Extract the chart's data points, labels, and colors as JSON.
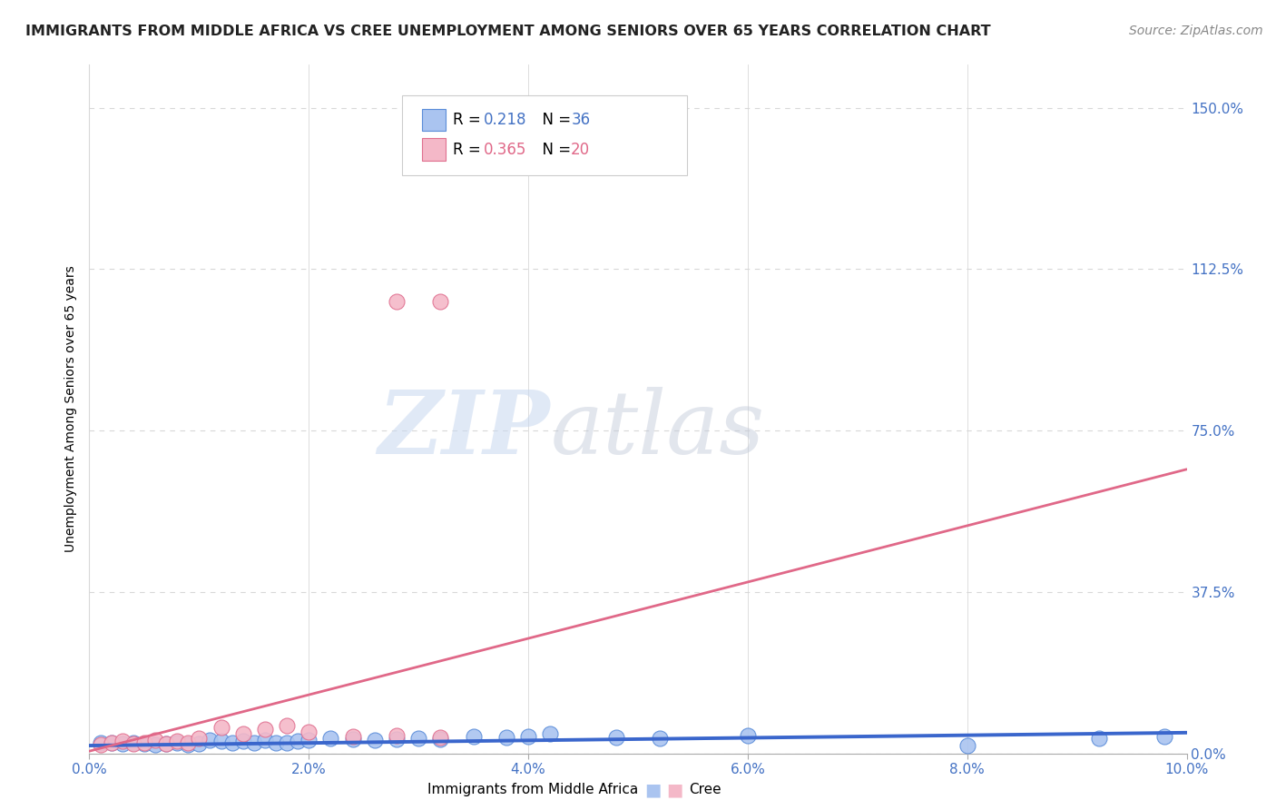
{
  "title": "IMMIGRANTS FROM MIDDLE AFRICA VS CREE UNEMPLOYMENT AMONG SENIORS OVER 65 YEARS CORRELATION CHART",
  "source": "Source: ZipAtlas.com",
  "ylabel": "Unemployment Among Seniors over 65 years",
  "xlim": [
    0.0,
    0.1
  ],
  "ylim": [
    0.0,
    1.6
  ],
  "yticks": [
    0.0,
    0.375,
    0.75,
    1.125,
    1.5
  ],
  "ytick_labels": [
    "0.0%",
    "37.5%",
    "75.0%",
    "112.5%",
    "150.0%"
  ],
  "xticks": [
    0.0,
    0.02,
    0.04,
    0.06,
    0.08,
    0.1
  ],
  "xtick_labels": [
    "0.0%",
    "2.0%",
    "4.0%",
    "6.0%",
    "8.0%",
    "10.0%"
  ],
  "blue_scatter_x": [
    0.001,
    0.002,
    0.003,
    0.004,
    0.005,
    0.006,
    0.007,
    0.008,
    0.009,
    0.01,
    0.011,
    0.012,
    0.013,
    0.014,
    0.015,
    0.016,
    0.017,
    0.018,
    0.019,
    0.02,
    0.022,
    0.024,
    0.026,
    0.028,
    0.03,
    0.032,
    0.035,
    0.038,
    0.04,
    0.042,
    0.048,
    0.052,
    0.06,
    0.08,
    0.092,
    0.098
  ],
  "blue_scatter_y": [
    0.025,
    0.025,
    0.022,
    0.025,
    0.022,
    0.02,
    0.022,
    0.025,
    0.02,
    0.022,
    0.03,
    0.028,
    0.025,
    0.028,
    0.025,
    0.03,
    0.025,
    0.025,
    0.028,
    0.03,
    0.035,
    0.032,
    0.03,
    0.032,
    0.035,
    0.032,
    0.04,
    0.038,
    0.04,
    0.045,
    0.038,
    0.035,
    0.042,
    0.018,
    0.035,
    0.04
  ],
  "pink_scatter_x": [
    0.001,
    0.002,
    0.003,
    0.004,
    0.005,
    0.006,
    0.007,
    0.008,
    0.009,
    0.01,
    0.012,
    0.014,
    0.016,
    0.018,
    0.02,
    0.024,
    0.028,
    0.032,
    0.028,
    0.032
  ],
  "pink_scatter_y": [
    0.02,
    0.025,
    0.028,
    0.022,
    0.025,
    0.03,
    0.022,
    0.028,
    0.025,
    0.035,
    0.06,
    0.045,
    0.055,
    0.065,
    0.05,
    0.04,
    0.042,
    0.038,
    1.05,
    1.05
  ],
  "blue_line_x": [
    0.0,
    0.1
  ],
  "blue_line_y": [
    0.018,
    0.048
  ],
  "pink_line_x": [
    0.0,
    0.1
  ],
  "pink_line_y": [
    0.005,
    0.66
  ],
  "blue_scatter_color": "#aac4f0",
  "blue_edge_color": "#5b8dd9",
  "pink_scatter_color": "#f4b8c8",
  "pink_edge_color": "#e07090",
  "blue_line_color": "#3a66cc",
  "pink_line_color": "#e06888",
  "legend_r_blue": "0.218",
  "legend_n_blue": "36",
  "legend_r_pink": "0.365",
  "legend_n_pink": "20",
  "legend_label_blue": "Immigrants from Middle Africa",
  "legend_label_pink": "Cree",
  "watermark_zip": "ZIP",
  "watermark_atlas": "atlas",
  "title_fontsize": 11.5,
  "axis_label_fontsize": 10,
  "tick_fontsize": 11,
  "source_fontsize": 10,
  "legend_fontsize": 12,
  "right_tick_color": "#4472c4",
  "grid_color": "#d8d8d8",
  "title_color": "#222222"
}
